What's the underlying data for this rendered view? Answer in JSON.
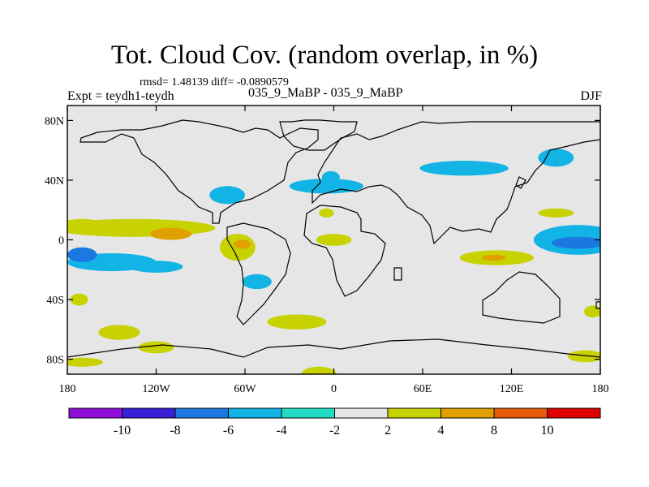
{
  "chart_data": {
    "type": "filled-contour-map",
    "title": "Tot. Cloud Cov. (random overlap, in %)",
    "stats_text": "rmsd= 1.48139 diff= -0.0890579",
    "rmsd": 1.48139,
    "diff": -0.0890579,
    "experiment_text": "Expt = teydh1-teydh",
    "period_label": "035_9_MaBP - 035_9_MaBP",
    "season": "DJF",
    "x_ticks": [
      {
        "value": -180,
        "label": "180"
      },
      {
        "value": -120,
        "label": "120W"
      },
      {
        "value": -60,
        "label": "60W"
      },
      {
        "value": 0,
        "label": "0"
      },
      {
        "value": 60,
        "label": "60E"
      },
      {
        "value": 120,
        "label": "120E"
      },
      {
        "value": 180,
        "label": "180"
      }
    ],
    "y_ticks": [
      {
        "value": 80,
        "label": "80N"
      },
      {
        "value": 40,
        "label": "40N"
      },
      {
        "value": 0,
        "label": "0"
      },
      {
        "value": -40,
        "label": "40S"
      },
      {
        "value": -80,
        "label": "80S"
      }
    ],
    "xlim": [
      -180,
      180
    ],
    "ylim": [
      -90,
      90
    ],
    "colorbar": {
      "colors": [
        "#8f0fd8",
        "#3a1fd8",
        "#1a78e0",
        "#12b4e6",
        "#1fdcc2",
        "#e6e6e6",
        "#c8d200",
        "#e0a000",
        "#e85a0a",
        "#e00000"
      ],
      "labels": [
        "-10",
        "-8",
        "-6",
        "-4",
        "-2",
        "2",
        "4",
        "8",
        "10"
      ]
    },
    "regions": [
      {
        "name": "central-pacific-positive",
        "class": 4,
        "ellipses": [
          [
            -135,
            8,
            55,
            6
          ],
          [
            -170,
            10,
            15,
            4
          ]
        ]
      },
      {
        "name": "central-pacific-core",
        "class": 6,
        "ellipses": [
          [
            -110,
            4,
            14,
            4
          ]
        ]
      },
      {
        "name": "south-pacific-negative",
        "class": -4,
        "ellipses": [
          [
            -150,
            -15,
            30,
            6
          ],
          [
            -120,
            -18,
            18,
            4
          ]
        ]
      },
      {
        "name": "south-pacific-core",
        "class": -6,
        "ellipses": [
          [
            -170,
            -10,
            10,
            5
          ]
        ]
      },
      {
        "name": "amazon-positive",
        "class": 4,
        "ellipses": [
          [
            -65,
            -5,
            12,
            9
          ]
        ]
      },
      {
        "name": "amazon-core",
        "class": 6,
        "ellipses": [
          [
            -62,
            -3,
            6,
            3
          ]
        ]
      },
      {
        "name": "south-america-negative",
        "class": -4,
        "ellipses": [
          [
            -52,
            -28,
            10,
            5
          ]
        ]
      },
      {
        "name": "south-atlantic-positive",
        "class": 4,
        "ellipses": [
          [
            -25,
            -55,
            20,
            5
          ]
        ]
      },
      {
        "name": "southern-ocean-positive-a",
        "class": 4,
        "ellipses": [
          [
            -145,
            -62,
            14,
            5
          ],
          [
            -172,
            -40,
            6,
            4
          ]
        ]
      },
      {
        "name": "southern-ocean-positive-b",
        "class": 4,
        "ellipses": [
          [
            -120,
            -72,
            12,
            4
          ],
          [
            -170,
            -82,
            14,
            3
          ]
        ]
      },
      {
        "name": "north-atlantic-negative",
        "class": -4,
        "ellipses": [
          [
            -5,
            36,
            25,
            5
          ],
          [
            -72,
            30,
            12,
            6
          ]
        ]
      },
      {
        "name": "africa-positive",
        "class": 4,
        "ellipses": [
          [
            0,
            0,
            12,
            4
          ],
          [
            -5,
            18,
            5,
            3
          ]
        ]
      },
      {
        "name": "africa-negative",
        "class": -4,
        "ellipses": [
          [
            -2,
            42,
            6,
            4
          ]
        ]
      },
      {
        "name": "indian-ocean-positive",
        "class": 4,
        "ellipses": [
          [
            110,
            -12,
            25,
            5
          ]
        ]
      },
      {
        "name": "indian-ocean-core",
        "class": 6,
        "ellipses": [
          [
            108,
            -12,
            8,
            2
          ]
        ]
      },
      {
        "name": "west-pacific-negative",
        "class": -4,
        "ellipses": [
          [
            165,
            0,
            30,
            10
          ]
        ]
      },
      {
        "name": "west-pacific-core",
        "class": -6,
        "ellipses": [
          [
            165,
            -2,
            18,
            4
          ]
        ]
      },
      {
        "name": "asia-negative",
        "class": -4,
        "ellipses": [
          [
            88,
            48,
            30,
            5
          ],
          [
            150,
            55,
            12,
            6
          ]
        ]
      },
      {
        "name": "asia-positive",
        "class": 4,
        "ellipses": [
          [
            150,
            18,
            12,
            3
          ],
          [
            175,
            -48,
            6,
            4
          ]
        ]
      },
      {
        "name": "antarctic-positive",
        "class": 4,
        "ellipses": [
          [
            170,
            -78,
            12,
            4
          ],
          [
            -10,
            -90,
            12,
            5
          ]
        ]
      }
    ]
  }
}
